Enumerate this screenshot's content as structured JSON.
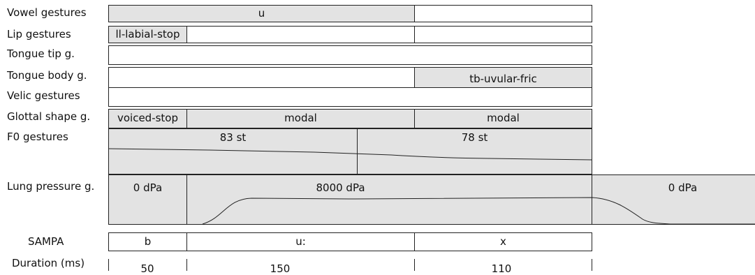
{
  "rows": {
    "vowel": "Vowel gestures",
    "lip": "Lip gestures",
    "tip": "Tongue tip g.",
    "body": "Tongue body g.",
    "velic": "Velic gestures",
    "glottal": "Glottal shape g.",
    "f0": "F0 gestures",
    "lung": "Lung pressure g.",
    "sampa": "SAMPA",
    "duration": "Duration (ms)"
  },
  "gestures": {
    "vowel_u": "u",
    "lip_stop": "ll-labial-stop",
    "tb_fric": "tb-uvular-fric",
    "glottal_voiced": "voiced-stop",
    "glottal_modal1": "modal",
    "glottal_modal2": "modal",
    "f0_a": "83 st",
    "f0_b": "78 st",
    "lung_a": "0 dPa",
    "lung_b": "8000 dPa",
    "lung_c": "0 dPa"
  },
  "segments": [
    {
      "sampa": "b",
      "duration": "50"
    },
    {
      "sampa": "u:",
      "duration": "150"
    },
    {
      "sampa": "x",
      "duration": "110"
    }
  ]
}
